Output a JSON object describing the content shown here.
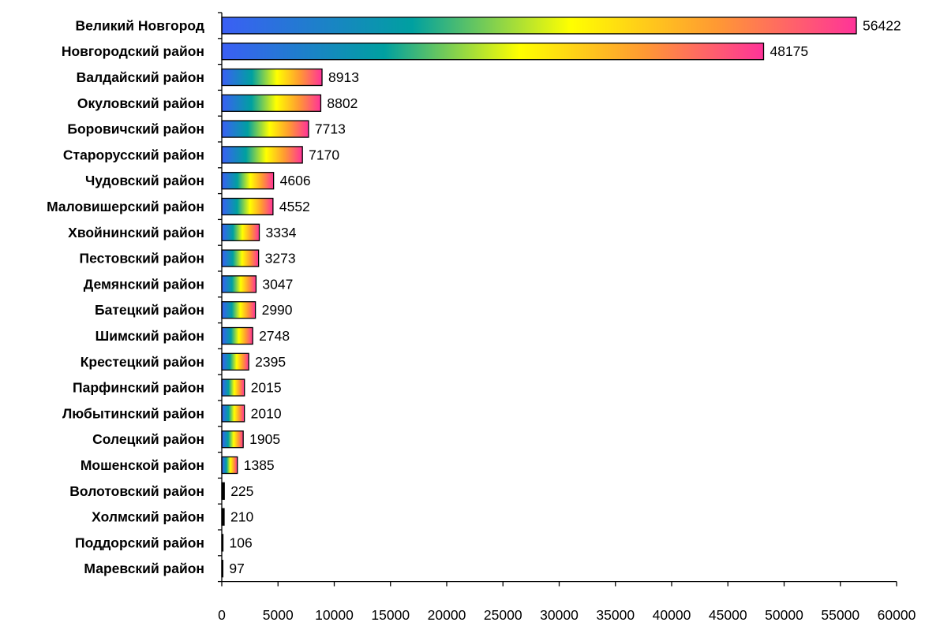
{
  "chart_data": {
    "type": "bar",
    "orientation": "horizontal",
    "title": "",
    "xlabel": "",
    "ylabel": "",
    "categories": [
      "Великий Новгород",
      "Новгородский район",
      "Валдайский район",
      "Окуловский район",
      "Боровичский район",
      "Старорусский район",
      "Чудовский район",
      "Маловишерский район",
      "Хвойнинский район",
      "Пестовский район",
      "Демянский район",
      "Батецкий район",
      "Шимский район",
      "Крестецкий район",
      "Парфинский район",
      "Любытинский район",
      "Солецкий район",
      "Мошенской район",
      "Волотовский район",
      "Холмский район",
      "Поддорский район",
      "Маревский район"
    ],
    "values": [
      56422,
      48175,
      8913,
      8802,
      7713,
      7170,
      4606,
      4552,
      3334,
      3273,
      3047,
      2990,
      2748,
      2395,
      2015,
      2010,
      1905,
      1385,
      225,
      210,
      106,
      97
    ],
    "value_labels": [
      "56422",
      "48175",
      "8913",
      "8802",
      "7713",
      "7170",
      "4606",
      "4552",
      "3334",
      "3273",
      "3047",
      "2990",
      "2748",
      "2395",
      "2015",
      "2010",
      "1905",
      "1385",
      "225",
      "210",
      "106",
      "97"
    ],
    "xlim": [
      0,
      60000
    ],
    "x_ticks": [
      0,
      5000,
      10000,
      15000,
      20000,
      25000,
      30000,
      35000,
      40000,
      45000,
      50000,
      55000,
      60000
    ],
    "x_tick_labels": [
      "0",
      "5000",
      "10000",
      "15000",
      "20000",
      "25000",
      "30000",
      "35000",
      "40000",
      "45000",
      "50000",
      "55000",
      "60000"
    ],
    "grid": false,
    "legend": "none",
    "bar_fill": "rainbow-gradient",
    "gradient_colors": [
      "#3b5ff5",
      "#00a0a0",
      "#ffff00",
      "#ff9933",
      "#ff3399"
    ]
  }
}
